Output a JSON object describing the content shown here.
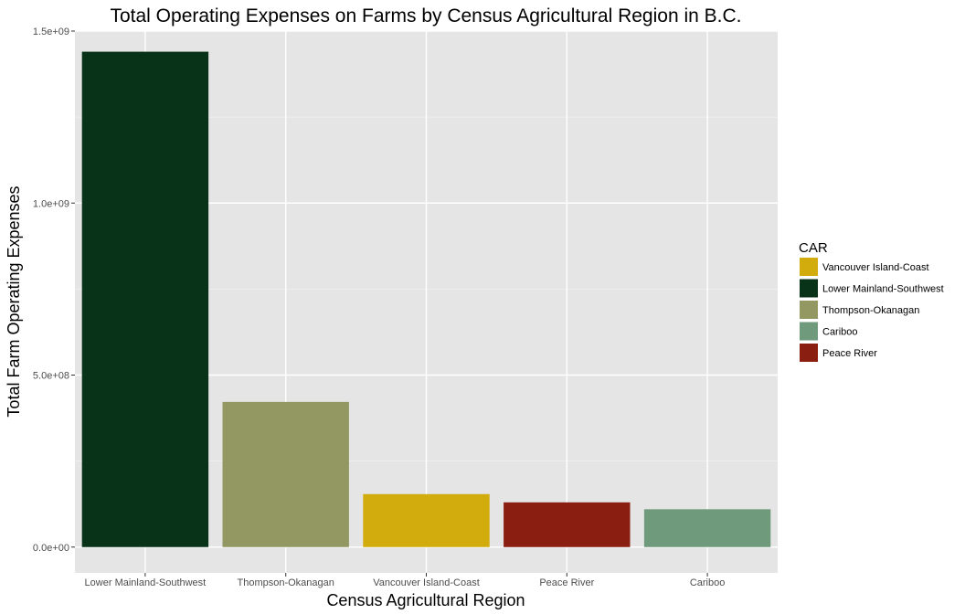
{
  "chart_data": {
    "type": "bar",
    "title": "Total Operating Expenses on Farms by Census Agricultural Region in B.C.",
    "xlabel": "Census Agricultural Region",
    "ylabel": "Total Farm Operating Expenses",
    "categories": [
      "Lower Mainland-Southwest",
      "Thompson-Okanagan",
      "Vancouver Island-Coast",
      "Peace River",
      "Cariboo"
    ],
    "values": [
      1440000000,
      422000000,
      154000000,
      130000000,
      110000000
    ],
    "colors": [
      "#093318",
      "#939863",
      "#d1ac0c",
      "#8a1f11",
      "#6f9a7c"
    ],
    "ylim": [
      -75000000,
      1500000000
    ],
    "yticks": [
      0,
      500000000,
      1000000000,
      1500000000
    ],
    "ytick_labels": [
      "0.0e+00",
      "5.0e+08",
      "1.0e+09",
      "1.5e+09"
    ],
    "grid": true,
    "legend": {
      "title": "CAR",
      "position": "right",
      "entries": [
        {
          "label": "Vancouver Island-Coast",
          "color": "#d1ac0c"
        },
        {
          "label": "Lower Mainland-Southwest",
          "color": "#093318"
        },
        {
          "label": "Thompson-Okanagan",
          "color": "#939863"
        },
        {
          "label": "Cariboo",
          "color": "#6f9a7c"
        },
        {
          "label": "Peace River",
          "color": "#8a1f11"
        }
      ]
    }
  }
}
